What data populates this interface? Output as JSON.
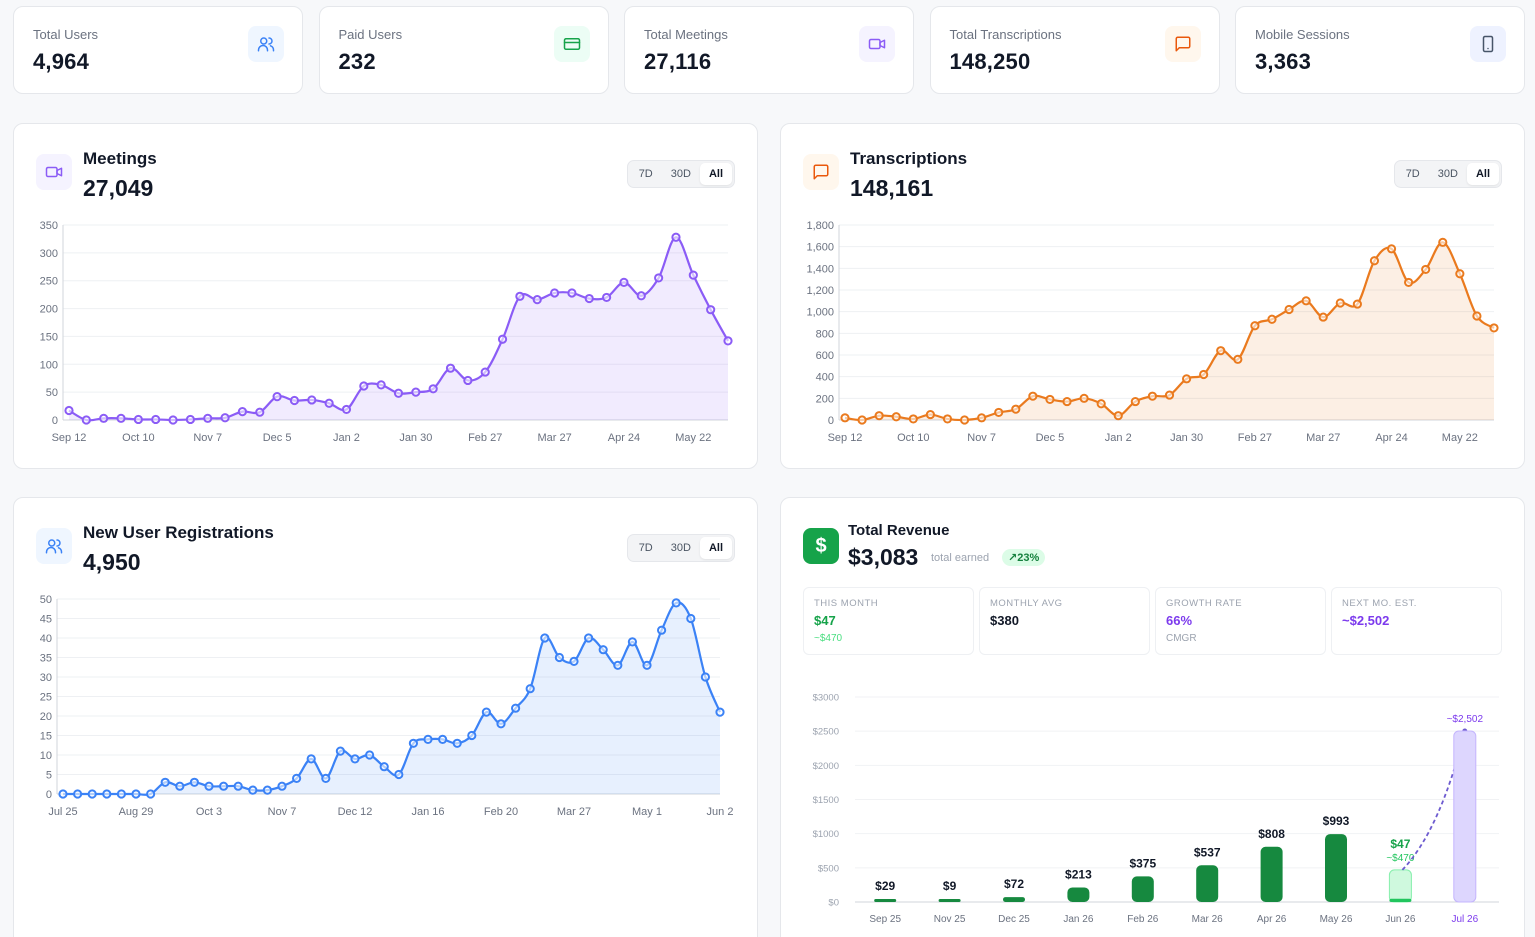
{
  "stats": [
    {
      "label": "Total Users",
      "value": "4,964",
      "icon": "users-icon",
      "bg": "#eff6ff",
      "color": "#3b82f6"
    },
    {
      "label": "Paid Users",
      "value": "232",
      "icon": "credit-card-icon",
      "bg": "#ecfdf5",
      "color": "#16a34a"
    },
    {
      "label": "Total Meetings",
      "value": "27,116",
      "icon": "video-icon",
      "bg": "#f5f3ff",
      "color": "#8b5cf6"
    },
    {
      "label": "Total Transcriptions",
      "value": "148,250",
      "icon": "message-icon",
      "bg": "#fff7ed",
      "color": "#ea580c"
    },
    {
      "label": "Mobile Sessions",
      "value": "3,363",
      "icon": "smartphone-icon",
      "bg": "#eef2ff",
      "color": "#475569"
    }
  ],
  "range_buttons": [
    "7D",
    "30D",
    "All"
  ],
  "meetings": {
    "title": "Meetings",
    "value": "27,049",
    "active_range": "All",
    "color": "#8b5cf6",
    "chart_data": {
      "type": "line",
      "ylim": [
        0,
        350
      ],
      "yticks": [
        "0",
        "50",
        "100",
        "150",
        "200",
        "250",
        "300",
        "350"
      ],
      "ytick_values": [
        0,
        50,
        100,
        150,
        200,
        250,
        300,
        350
      ],
      "xtick_labels": [
        "Sep 12",
        "Oct 10",
        "Nov 7",
        "Dec 5",
        "Jan 2",
        "Jan 30",
        "Feb 27",
        "Mar 27",
        "Apr 24",
        "May 22"
      ],
      "xtick_index": [
        0,
        4,
        8,
        12,
        16,
        20,
        24,
        28,
        32,
        36
      ],
      "values": [
        17,
        0,
        3,
        3,
        1,
        1,
        0,
        1,
        3,
        4,
        15,
        14,
        42,
        35,
        36,
        30,
        19,
        61,
        63,
        48,
        50,
        56,
        93,
        71,
        86,
        145,
        222,
        216,
        228,
        228,
        218,
        220,
        247,
        223,
        255,
        328,
        260,
        198,
        142
      ]
    }
  },
  "transcriptions": {
    "title": "Transcriptions",
    "value": "148,161",
    "active_range": "All",
    "color": "#ea7a1e",
    "chart_data": {
      "type": "line",
      "ylim": [
        0,
        1800
      ],
      "yticks": [
        "0",
        "200",
        "400",
        "600",
        "800",
        "1,000",
        "1,200",
        "1,400",
        "1,600",
        "1,800"
      ],
      "ytick_values": [
        0,
        200,
        400,
        600,
        800,
        1000,
        1200,
        1400,
        1600,
        1800
      ],
      "xtick_labels": [
        "Sep 12",
        "Oct 10",
        "Nov 7",
        "Dec 5",
        "Jan 2",
        "Jan 30",
        "Feb 27",
        "Mar 27",
        "Apr 24",
        "May 22"
      ],
      "xtick_index": [
        0,
        4,
        8,
        12,
        16,
        20,
        24,
        28,
        32,
        36
      ],
      "values": [
        20,
        0,
        40,
        30,
        10,
        50,
        10,
        0,
        20,
        70,
        100,
        220,
        190,
        170,
        200,
        150,
        40,
        170,
        220,
        230,
        380,
        420,
        640,
        560,
        870,
        930,
        1020,
        1100,
        950,
        1080,
        1070,
        1470,
        1580,
        1270,
        1390,
        1640,
        1350,
        960,
        850
      ]
    }
  },
  "registrations": {
    "title": "New User Registrations",
    "value": "4,950",
    "active_range": "All",
    "color": "#3b82f6",
    "chart_data": {
      "type": "line",
      "ylim": [
        0,
        50
      ],
      "yticks": [
        "0",
        "5",
        "10",
        "15",
        "20",
        "25",
        "30",
        "35",
        "40",
        "45",
        "50"
      ],
      "ytick_values": [
        0,
        5,
        10,
        15,
        20,
        25,
        30,
        35,
        40,
        45,
        50
      ],
      "xtick_labels": [
        "Jul 25",
        "Aug 29",
        "Oct 3",
        "Nov 7",
        "Dec 12",
        "Jan 16",
        "Feb 20",
        "Mar 27",
        "May 1",
        "Jun 2"
      ],
      "xtick_index": [
        0,
        5,
        10,
        15,
        20,
        25,
        30,
        35,
        40,
        45
      ],
      "values": [
        0,
        0,
        0,
        0,
        0,
        0,
        0,
        3,
        2,
        3,
        2,
        2,
        2,
        1,
        1,
        2,
        4,
        9,
        4,
        11,
        9,
        10,
        7,
        5,
        13,
        14,
        14,
        13,
        15,
        21,
        18,
        22,
        27,
        40,
        35,
        34,
        40,
        37,
        33,
        39,
        33,
        42,
        49,
        45,
        30,
        21
      ]
    }
  },
  "revenue": {
    "title": "Total Revenue",
    "value": "$3,083",
    "sub": "total earned",
    "growth": "23%",
    "growth_icon": "trending-up-icon",
    "badge_glyph": "$",
    "metrics": [
      {
        "label": "THIS MONTH",
        "value": "$47",
        "sub": "~$470",
        "color": "#16a34a",
        "sub_color": "#4ade80"
      },
      {
        "label": "MONTHLY AVG",
        "value": "$380",
        "sub": "",
        "color": "#111827",
        "sub_color": "#9ca3af"
      },
      {
        "label": "GROWTH RATE",
        "value": "66%",
        "sub": "CMGR",
        "color": "#7c3aed",
        "sub_color": "#9ca3af"
      },
      {
        "label": "NEXT MO. EST.",
        "value": "~$2,502",
        "sub": "",
        "color": "#7c3aed",
        "sub_color": "#9ca3af"
      }
    ],
    "chart_data": {
      "type": "bar",
      "ylim": [
        0,
        3000
      ],
      "yticks": [
        "$0",
        "$500",
        "$1000",
        "$1500",
        "$2000",
        "$2500",
        "$3000"
      ],
      "ytick_values": [
        0,
        500,
        1000,
        1500,
        2000,
        2500,
        3000
      ],
      "categories": [
        "Sep 25",
        "Nov 25",
        "Dec 25",
        "Jan 26",
        "Feb 26",
        "Mar 26",
        "Apr 26",
        "May 26",
        "Jun 26",
        "Jul 26"
      ],
      "values": [
        29,
        9,
        72,
        213,
        375,
        537,
        808,
        993,
        47,
        2502
      ],
      "labels": [
        "$29",
        "$9",
        "$72",
        "$213",
        "$375",
        "$537",
        "$808",
        "$993",
        "$47",
        "~$2,502"
      ],
      "projected_current": 470,
      "projected_current_label": "~$470",
      "bar_color": "#16893f",
      "current_color": "#bbf7d0",
      "forecast_color": "#ddd6fe",
      "forecast_label_color": "#7c3aed"
    }
  }
}
